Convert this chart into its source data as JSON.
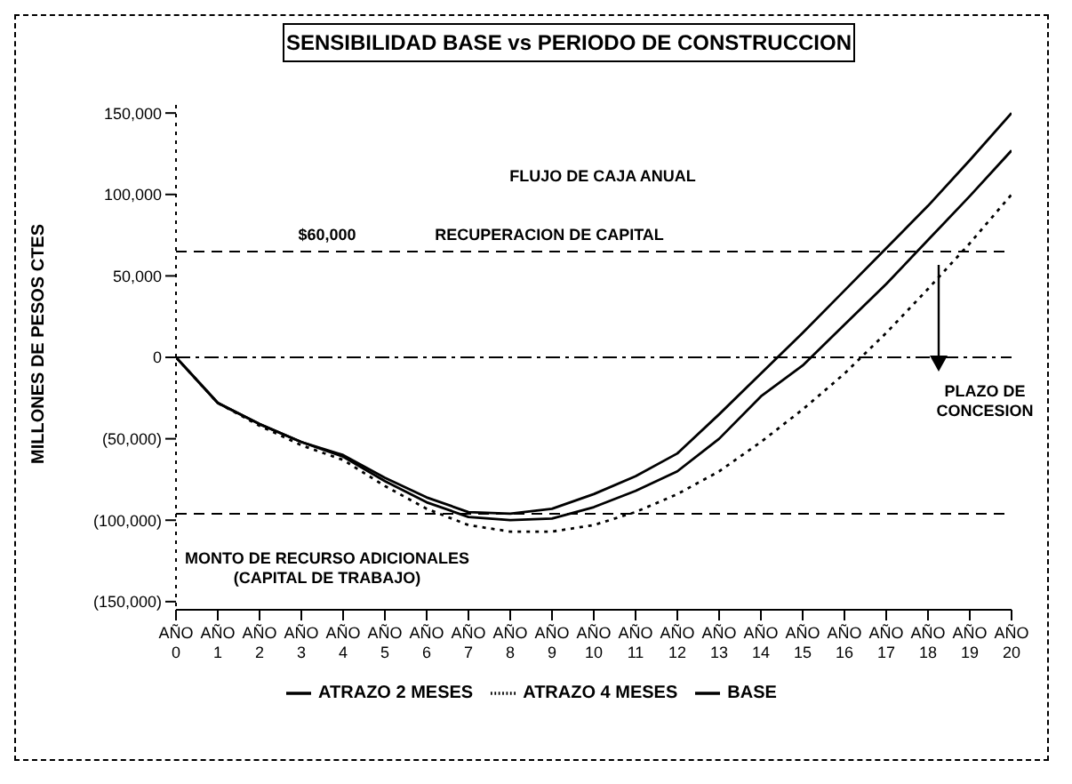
{
  "chart_data": {
    "type": "line",
    "title": "SENSIBILIDAD BASE vs PERIODO DE CONSTRUCCION",
    "ylabel": "MILLONES DE PESOS CTES",
    "categories": [
      "AÑO 0",
      "AÑO 1",
      "AÑO 2",
      "AÑO 3",
      "AÑO 4",
      "AÑO 5",
      "AÑO 6",
      "AÑO 7",
      "AÑO 8",
      "AÑO 9",
      "AÑO 10",
      "AÑO 11",
      "AÑO 12",
      "AÑO 13",
      "AÑO 14",
      "AÑO 15",
      "AÑO 16",
      "AÑO 17",
      "AÑO 18",
      "AÑO 19",
      "AÑO 20"
    ],
    "series": [
      {
        "name": "BASE",
        "color": "#000000",
        "line_style": "solid",
        "values": [
          0,
          -28000,
          -41000,
          -52000,
          -60000,
          -74000,
          -86000,
          -95000,
          -96000,
          -93000,
          -84000,
          -73000,
          -59000,
          -35000,
          -10000,
          15000,
          41000,
          67000,
          93000,
          121000,
          150000
        ]
      },
      {
        "name": "ATRAZO 2 MESES",
        "color": "#000000",
        "line_style": "solid",
        "values": [
          0,
          -28000,
          -41000,
          -52000,
          -61000,
          -76000,
          -89000,
          -98000,
          -100000,
          -99000,
          -92000,
          -82000,
          -70000,
          -50000,
          -24000,
          -5000,
          20000,
          45000,
          72000,
          99000,
          127000
        ]
      },
      {
        "name": "ATRAZO 4 MESES",
        "color": "#000000",
        "line_style": "dotted",
        "values": [
          0,
          -28000,
          -42000,
          -54000,
          -63000,
          -79000,
          -93000,
          -103000,
          -107000,
          -107000,
          -103000,
          -95000,
          -84000,
          -70000,
          -52000,
          -32000,
          -10000,
          15000,
          42000,
          70000,
          100000
        ]
      }
    ],
    "ylim": [
      -155000,
      155000
    ],
    "yticks": [
      {
        "value": -150000,
        "label": "(150,000)"
      },
      {
        "value": -100000,
        "label": "(100,000)"
      },
      {
        "value": -50000,
        "label": "(50,000)"
      },
      0,
      {
        "value": 50000,
        "label": "50,000"
      },
      {
        "value": 100000,
        "label": "100,000"
      },
      {
        "value": 150000,
        "label": "150,000"
      }
    ],
    "ref_lines": [
      {
        "axis": "y",
        "value": 0,
        "line_style": "dashdot"
      },
      {
        "axis": "y",
        "value": 65000,
        "line_style": "dashed"
      },
      {
        "axis": "y",
        "value": -96000,
        "line_style": "dashed"
      }
    ],
    "annotations": [
      "FLUJO DE CAJA ANUAL",
      "$60,000",
      "RECUPERACION DE CAPITAL",
      "PLAZO DE\nCONCESION",
      "MONTO DE RECURSO ADICIONALES\n(CAPITAL DE TRABAJO)"
    ],
    "marker": "none",
    "grid": false,
    "legend": "bottom"
  }
}
